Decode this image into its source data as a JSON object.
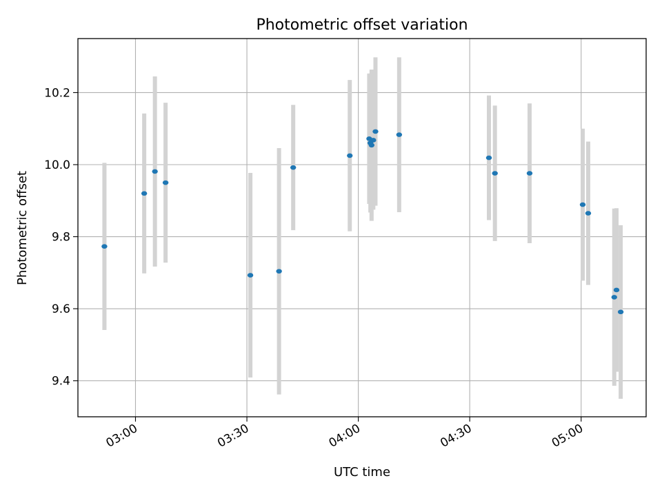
{
  "chart_data": {
    "type": "scatter",
    "title": "Photometric offset variation",
    "xlabel": "UTC time",
    "ylabel": "Photometric offset",
    "x_axis_type": "time",
    "xlim": [
      "02:44:30",
      "05:17:30"
    ],
    "ylim": [
      9.3,
      10.35
    ],
    "x_ticks": [
      "03:00",
      "03:30",
      "04:00",
      "04:30",
      "05:00"
    ],
    "y_ticks": [
      9.4,
      9.6,
      9.8,
      10.0,
      10.2
    ],
    "y_tick_labels": [
      "9.4",
      "9.6",
      "9.8",
      "10.0",
      "10.2"
    ],
    "grid": true,
    "marker_color": "#1f77b4",
    "errorbar_color": "#d3d3d3",
    "series": [
      {
        "points": [
          {
            "x": "02:51:38",
            "y": 9.773,
            "yerr": 0.232
          },
          {
            "x": "03:02:21",
            "y": 9.92,
            "yerr": 0.222
          },
          {
            "x": "03:05:14",
            "y": 9.981,
            "yerr": 0.264
          },
          {
            "x": "03:08:06",
            "y": 9.95,
            "yerr": 0.222
          },
          {
            "x": "03:30:56",
            "y": 9.693,
            "yerr": 0.284
          },
          {
            "x": "03:38:39",
            "y": 9.704,
            "yerr": 0.342
          },
          {
            "x": "03:42:28",
            "y": 9.992,
            "yerr": 0.174
          },
          {
            "x": "03:57:42",
            "y": 10.025,
            "yerr": 0.21
          },
          {
            "x": "04:02:56",
            "y": 10.072,
            "yerr": 0.181
          },
          {
            "x": "04:03:15",
            "y": 10.06,
            "yerr": 0.193
          },
          {
            "x": "04:03:34",
            "y": 10.054,
            "yerr": 0.21
          },
          {
            "x": "04:04:02",
            "y": 10.068,
            "yerr": 0.193
          },
          {
            "x": "04:04:37",
            "y": 10.092,
            "yerr": 0.206
          },
          {
            "x": "04:11:00",
            "y": 10.083,
            "yerr": 0.215
          },
          {
            "x": "04:35:10",
            "y": 10.019,
            "yerr": 0.173
          },
          {
            "x": "04:36:47",
            "y": 9.976,
            "yerr": 0.188
          },
          {
            "x": "04:46:07",
            "y": 9.976,
            "yerr": 0.194
          },
          {
            "x": "05:00:25",
            "y": 9.889,
            "yerr": 0.211
          },
          {
            "x": "05:01:54",
            "y": 9.865,
            "yerr": 0.199
          },
          {
            "x": "05:08:55",
            "y": 9.632,
            "yerr": 0.246
          },
          {
            "x": "05:09:31",
            "y": 9.652,
            "yerr": 0.227
          },
          {
            "x": "05:10:39",
            "y": 9.591,
            "yerr": 0.241
          }
        ]
      }
    ]
  }
}
